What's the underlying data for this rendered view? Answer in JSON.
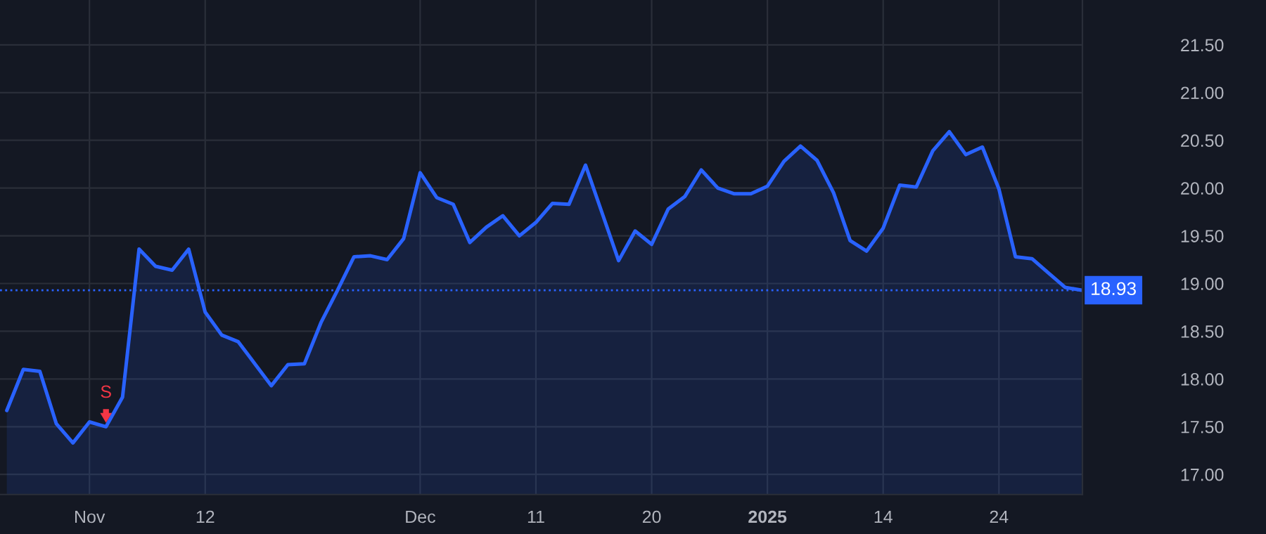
{
  "chart_data": {
    "type": "area",
    "categories": [
      null,
      null,
      null,
      null,
      null,
      "Nov",
      null,
      null,
      null,
      null,
      null,
      null,
      "12",
      null,
      null,
      null,
      null,
      null,
      null,
      null,
      null,
      null,
      null,
      null,
      null,
      "Dec",
      null,
      null,
      null,
      null,
      null,
      null,
      "11",
      null,
      null,
      null,
      null,
      null,
      null,
      "20",
      null,
      null,
      null,
      null,
      null,
      null,
      "2025",
      null,
      null,
      null,
      null,
      null,
      null,
      "14",
      null,
      null,
      null,
      null,
      null,
      null,
      "24",
      null,
      null,
      null,
      null,
      null
    ],
    "series": [
      {
        "color": "#2962ff",
        "values": [
          17.67,
          18.1,
          18.08,
          17.53,
          17.33,
          17.55,
          17.5,
          17.81,
          19.36,
          19.18,
          19.14,
          19.36,
          18.7,
          18.46,
          18.39,
          18.16,
          17.93,
          18.15,
          18.16,
          18.59,
          18.93,
          19.28,
          19.29,
          19.25,
          19.47,
          20.16,
          19.9,
          19.83,
          19.43,
          19.59,
          19.71,
          19.5,
          19.64,
          19.84,
          19.83,
          20.24,
          19.74,
          19.24,
          19.55,
          19.41,
          19.78,
          19.91,
          20.19,
          20.0,
          19.94,
          19.94,
          20.02,
          20.28,
          20.44,
          20.29,
          19.95,
          19.45,
          19.34,
          19.58,
          20.03,
          20.01,
          20.39,
          20.59,
          20.35,
          20.43,
          19.99,
          19.28,
          19.26,
          19.11,
          18.96,
          18.93
        ]
      }
    ],
    "ylim": [
      16.79,
      21.97
    ],
    "yticks": [
      {
        "value": 17,
        "label": "17.00"
      },
      {
        "value": 17.5,
        "label": "17.50"
      },
      {
        "value": 18,
        "label": "18.00"
      },
      {
        "value": 18.5,
        "label": "18.50"
      },
      {
        "value": 19,
        "label": "19.00"
      },
      {
        "value": 19.5,
        "label": "19.50"
      },
      {
        "value": 20,
        "label": "20.00"
      },
      {
        "value": 20.5,
        "label": "20.50"
      },
      {
        "value": 21,
        "label": "21.00"
      },
      {
        "value": 21.5,
        "label": "21.50"
      }
    ],
    "ref_lines": [
      {
        "axis": "y",
        "value": 18.93,
        "label": "18.93",
        "color": "#2962ff",
        "line_style": "dotted"
      }
    ],
    "annotations": [
      {
        "text": "S",
        "y": 17.5
      }
    ],
    "grid": true
  }
}
